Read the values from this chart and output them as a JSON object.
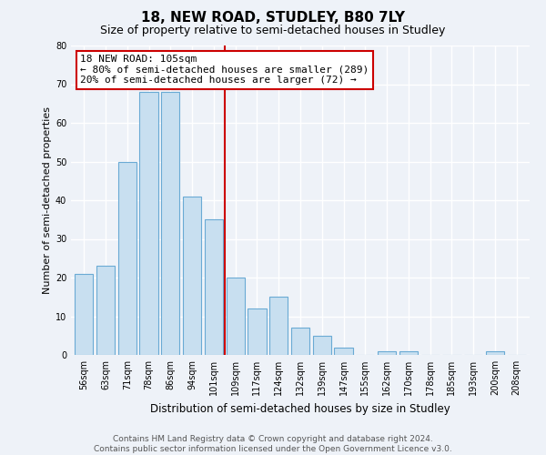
{
  "title": "18, NEW ROAD, STUDLEY, B80 7LY",
  "subtitle": "Size of property relative to semi-detached houses in Studley",
  "xlabel": "Distribution of semi-detached houses by size in Studley",
  "ylabel": "Number of semi-detached properties",
  "categories": [
    "56sqm",
    "63sqm",
    "71sqm",
    "78sqm",
    "86sqm",
    "94sqm",
    "101sqm",
    "109sqm",
    "117sqm",
    "124sqm",
    "132sqm",
    "139sqm",
    "147sqm",
    "155sqm",
    "162sqm",
    "170sqm",
    "178sqm",
    "185sqm",
    "193sqm",
    "200sqm",
    "208sqm"
  ],
  "values": [
    21,
    23,
    50,
    68,
    68,
    41,
    35,
    20,
    12,
    15,
    7,
    5,
    2,
    0,
    1,
    1,
    0,
    0,
    0,
    1,
    0
  ],
  "bar_color": "#c8dff0",
  "bar_edge_color": "#6aaad4",
  "vline_x": 6.5,
  "vline_color": "#cc0000",
  "annotation_title": "18 NEW ROAD: 105sqm",
  "annotation_line1": "← 80% of semi-detached houses are smaller (289)",
  "annotation_line2": "20% of semi-detached houses are larger (72) →",
  "annotation_box_color": "#ffffff",
  "annotation_box_edge": "#cc0000",
  "ylim": [
    0,
    80
  ],
  "yticks": [
    0,
    10,
    20,
    30,
    40,
    50,
    60,
    70,
    80
  ],
  "footer_line1": "Contains HM Land Registry data © Crown copyright and database right 2024.",
  "footer_line2": "Contains public sector information licensed under the Open Government Licence v3.0.",
  "background_color": "#eef2f8",
  "grid_color": "#ffffff",
  "title_fontsize": 11,
  "subtitle_fontsize": 9,
  "ylabel_fontsize": 8,
  "xlabel_fontsize": 8.5,
  "tick_fontsize": 7,
  "annotation_fontsize": 8,
  "footer_fontsize": 6.5
}
